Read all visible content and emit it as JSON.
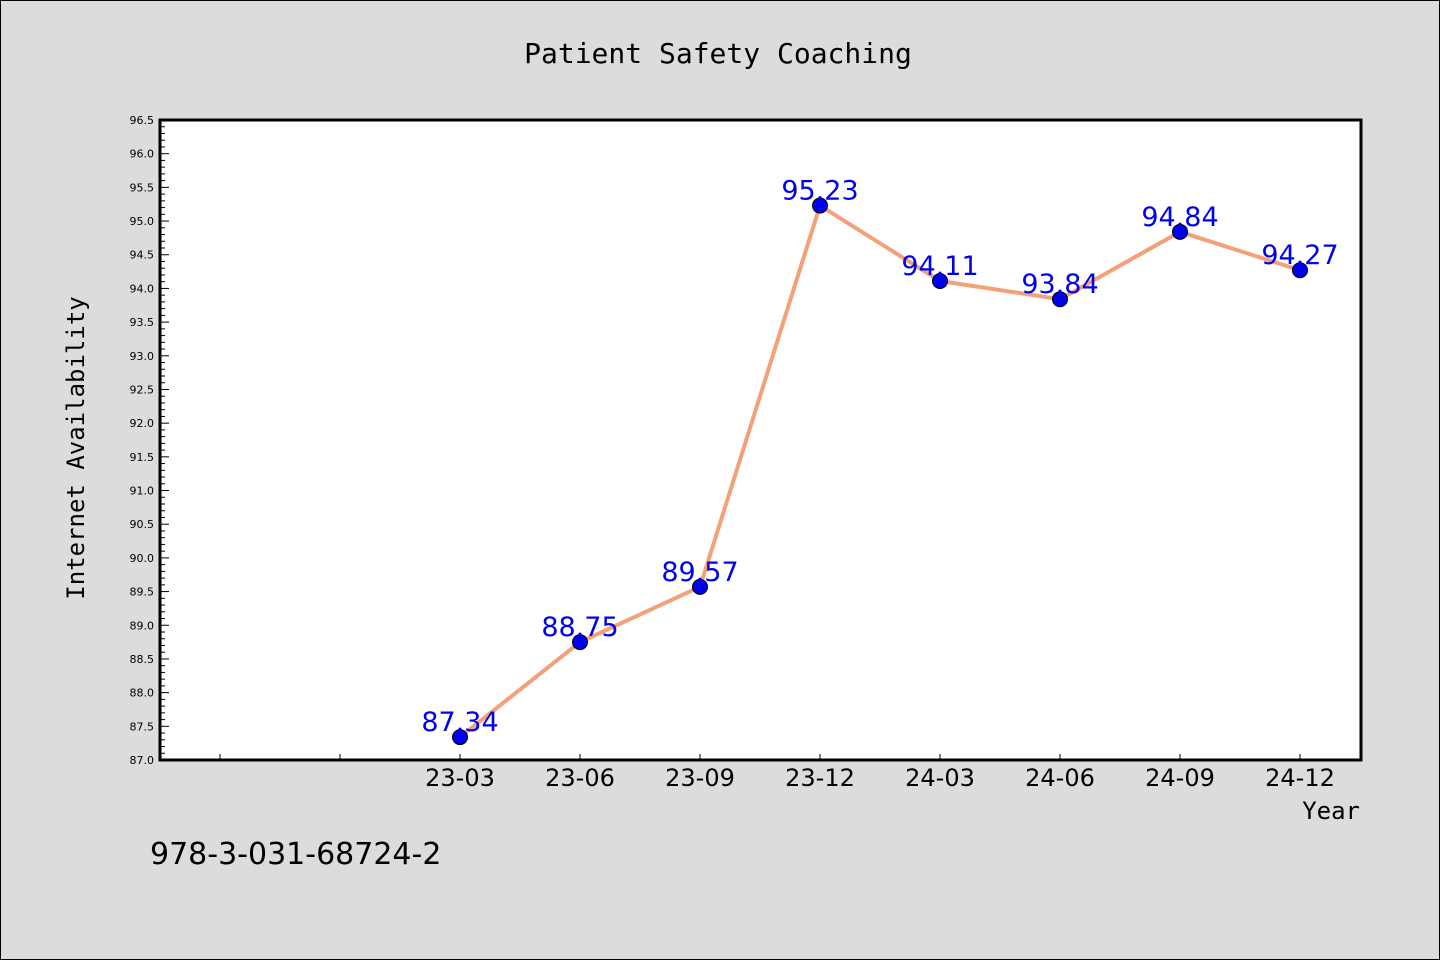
{
  "chart_data": {
    "type": "line",
    "title": "Patient Safety Coaching",
    "xlabel": "Year",
    "ylabel": "Internet Availability",
    "ylim": [
      87.0,
      96.5
    ],
    "y_tick_step": 0.5,
    "categories": [
      "23-03",
      "23-06",
      "23-09",
      "23-12",
      "24-03",
      "24-06",
      "24-09",
      "24-12"
    ],
    "series": [
      {
        "values": [
          87.34,
          88.75,
          89.57,
          95.23,
          94.11,
          93.84,
          94.84,
          94.27
        ],
        "line_color": "#f4a07a",
        "marker_color": "#0000ee",
        "label_color": "#0000ee"
      }
    ],
    "data_labels": [
      "87.34",
      "88.75",
      "89.57",
      "95.23",
      "94.11",
      "93.84",
      "94.84",
      "94.27"
    ],
    "grid": false,
    "legend": "none"
  },
  "footer": {
    "text": "978-3-031-68724-2"
  },
  "colors": {
    "background": "#dcdcdc",
    "plot_background": "#ffffff"
  }
}
